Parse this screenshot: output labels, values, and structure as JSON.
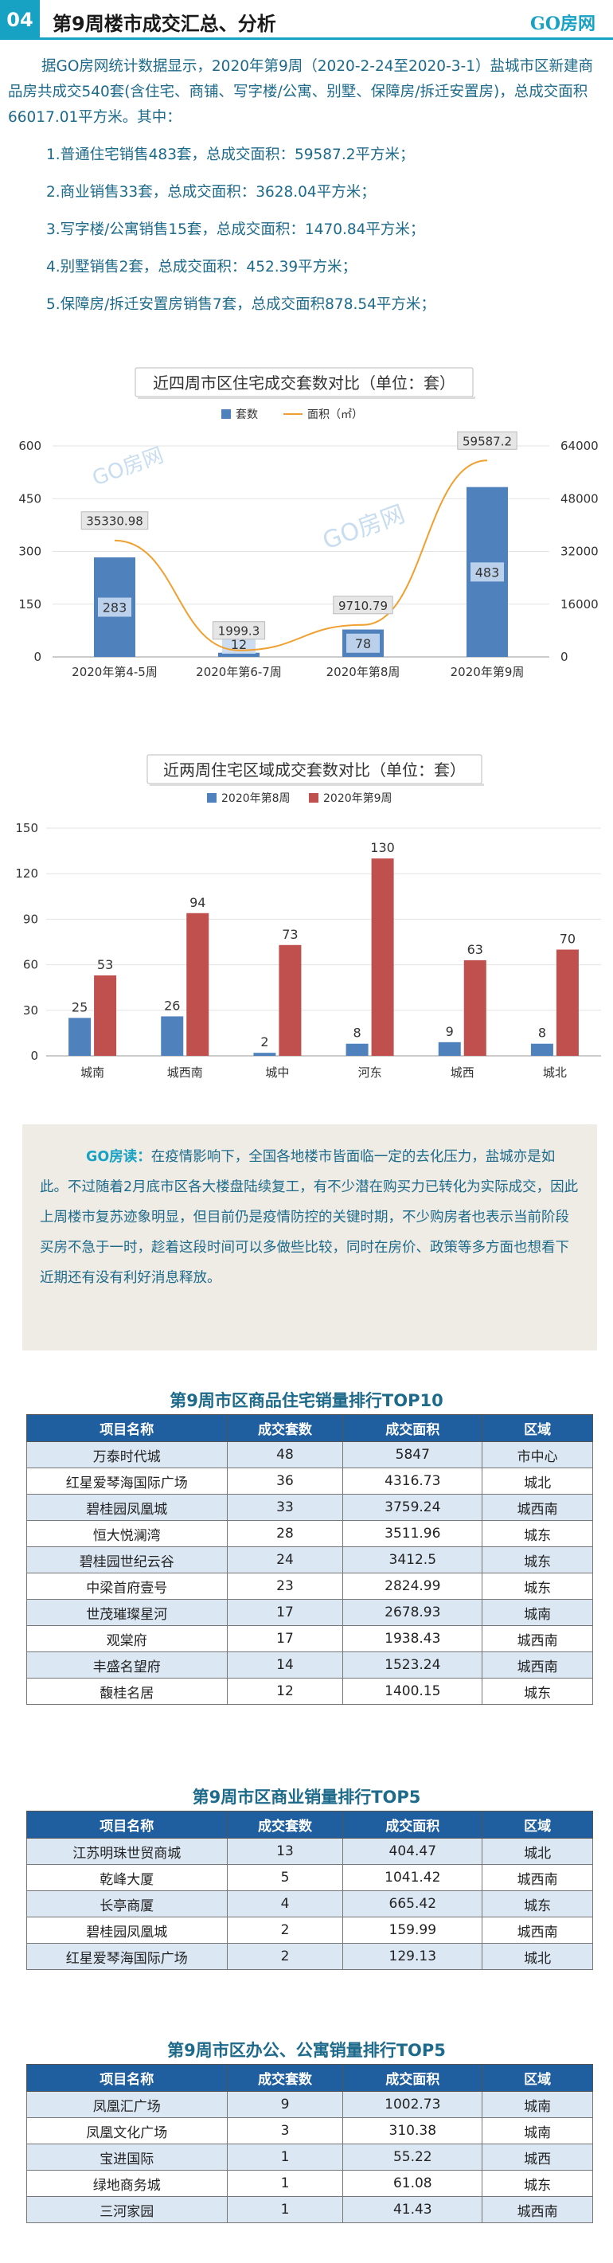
{
  "header": {
    "number": "04",
    "title": "第9周楼市成交汇总、分析",
    "logo": "GO房网"
  },
  "intro": {
    "lead": "据GO房网统计数据显示，2020年第9周（2020-2-24至2020-3-1）盐城市区新建商品房共成交540套(含住宅、商铺、写字楼/公寓、别墅、保障房/拆迁安置房)，总成交面积66017.01平方米。其中：",
    "items": [
      "1.普通住宅销售483套，总成交面积：59587.2平方米；",
      "2.商业销售33套，总成交面积：3628.04平方米；",
      "3.写字楼/公寓销售15套，总成交面积：1470.84平方米；",
      "4.别墅销售2套，总成交面积：452.39平方米；",
      "5.保障房/拆迁安置房销售7套，总成交面积878.54平方米；"
    ]
  },
  "watermark": "GO房网",
  "chart_data": [
    {
      "type": "bar",
      "title": "近四周市区住宅成交套数对比（单位：套）",
      "categories": [
        "2020年第4-5周",
        "2020年第6-7周",
        "2020年第8周",
        "2020年第9周"
      ],
      "series": [
        {
          "name": "套数",
          "type": "bar",
          "axis": "left",
          "values": [
            283,
            12,
            78,
            483
          ],
          "color": "#4f81bd"
        },
        {
          "name": "面积（㎡）",
          "type": "line",
          "axis": "right",
          "values": [
            35330.98,
            1999.3,
            9710.79,
            59587.2
          ],
          "color": "#f0a030"
        }
      ],
      "left_ticks": [
        "0",
        "150",
        "300",
        "450",
        "600"
      ],
      "right_ticks": [
        "0",
        "16000",
        "32000",
        "48000",
        "64000"
      ],
      "ylim": [
        0,
        600
      ],
      "y2lim": [
        0,
        64000
      ],
      "legend": "top-center"
    },
    {
      "type": "bar",
      "title": "近两周住宅区域成交套数对比（单位：套）",
      "categories": [
        "城南",
        "城西南",
        "城中",
        "河东",
        "城西",
        "城北"
      ],
      "series": [
        {
          "name": "2020年第8周",
          "values": [
            25,
            26,
            2,
            8,
            9,
            8
          ],
          "color": "#4f81bd"
        },
        {
          "name": "2020年第9周",
          "values": [
            53,
            94,
            73,
            130,
            63,
            70
          ],
          "color": "#c0504d"
        }
      ],
      "ticks": [
        "0",
        "30",
        "60",
        "90",
        "120",
        "150"
      ],
      "ylim": [
        0,
        150
      ],
      "legend": "top-center"
    }
  ],
  "reading": {
    "label": "GO房读：",
    "text": "在疫情影响下，全国各地楼市皆面临一定的去化压力，盐城亦是如此。不过随着2月底市区各大楼盘陆续复工，有不少潜在购买力已转化为实际成交，因此上周楼市复苏迹象明显，但目前仍是疫情防控的关键时期，不少购房者也表示当前阶段买房不急于一时，趁着这段时间可以多做些比较，同时在房价、政策等多方面也想看下近期还有没有利好消息释放。"
  },
  "tables": [
    {
      "title": "第9周市区商品住宅销量排行TOP10",
      "headers": [
        "项目名称",
        "成交套数",
        "成交面积",
        "区域"
      ],
      "rows": [
        [
          "万泰时代城",
          "48",
          "5847",
          "市中心"
        ],
        [
          "红星爱琴海国际广场",
          "36",
          "4316.73",
          "城北"
        ],
        [
          "碧桂园凤凰城",
          "33",
          "3759.24",
          "城西南"
        ],
        [
          "恒大悦澜湾",
          "28",
          "3511.96",
          "城东"
        ],
        [
          "碧桂园世纪云谷",
          "24",
          "3412.5",
          "城东"
        ],
        [
          "中梁首府壹号",
          "23",
          "2824.99",
          "城东"
        ],
        [
          "世茂璀璨星河",
          "17",
          "2678.93",
          "城南"
        ],
        [
          "观棠府",
          "17",
          "1938.43",
          "城西南"
        ],
        [
          "丰盛名望府",
          "14",
          "1523.24",
          "城西南"
        ],
        [
          "馥桂名居",
          "12",
          "1400.15",
          "城东"
        ]
      ]
    },
    {
      "title": "第9周市区商业销量排行TOP5",
      "headers": [
        "项目名称",
        "成交套数",
        "成交面积",
        "区域"
      ],
      "rows": [
        [
          "江苏明珠世贸商城",
          "13",
          "404.47",
          "城北"
        ],
        [
          "乾峰大厦",
          "5",
          "1041.42",
          "城西南"
        ],
        [
          "长亭商厦",
          "4",
          "665.42",
          "城东"
        ],
        [
          "碧桂园凤凰城",
          "2",
          "159.99",
          "城西南"
        ],
        [
          "红星爱琴海国际广场",
          "2",
          "129.13",
          "城北"
        ]
      ]
    },
    {
      "title": "第9周市区办公、公寓销量排行TOP5",
      "headers": [
        "项目名称",
        "成交套数",
        "成交面积",
        "区域"
      ],
      "rows": [
        [
          "凤凰汇广场",
          "9",
          "1002.73",
          "城南"
        ],
        [
          "凤凰文化广场",
          "3",
          "310.38",
          "城南"
        ],
        [
          "宝进国际",
          "1",
          "55.22",
          "城西"
        ],
        [
          "绿地商务城",
          "1",
          "61.08",
          "城东"
        ],
        [
          "三河家园",
          "1",
          "41.43",
          "城西南"
        ]
      ]
    }
  ]
}
